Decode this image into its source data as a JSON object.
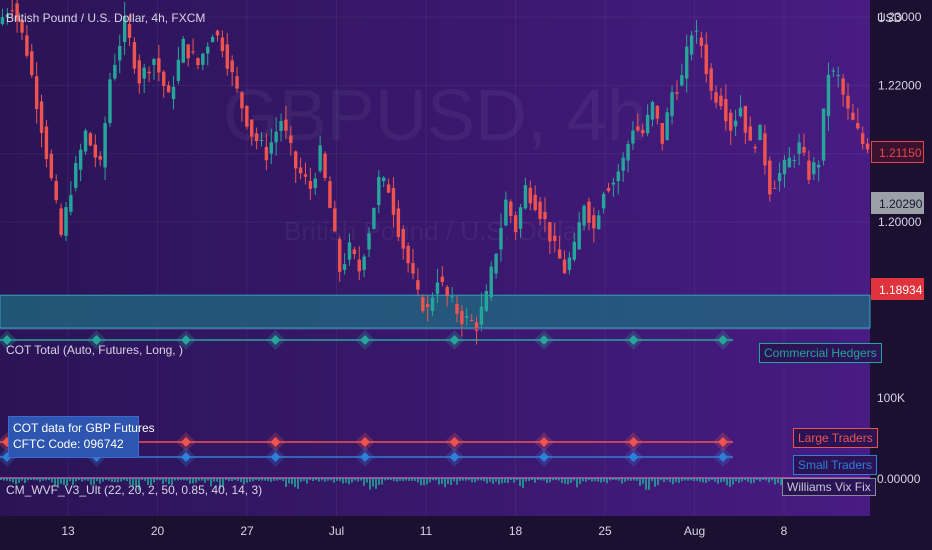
{
  "header": {
    "symbol_title": "British Pound / U.S. Dollar, 4h, FXCM"
  },
  "watermark": {
    "main": "GBPUSD, 4h",
    "sub": "British Pound / U.S. Dollar"
  },
  "price_axis": {
    "currency": "USD",
    "ticks": [
      "1.23000",
      "1.22000",
      "1.21000",
      "1.20000"
    ],
    "tags": [
      {
        "text": "1.21150",
        "color": "#3a1230",
        "border": "#e0474c",
        "fg": "#e0474c"
      },
      {
        "text": "1.20290",
        "color": "#9aa1a8",
        "border": "#9aa1a8",
        "fg": "#1a1a2a"
      },
      {
        "text": "1.18934",
        "color": "#e0343c",
        "border": "#e0343c",
        "fg": "#ffffff"
      }
    ]
  },
  "cot_panel": {
    "title": "COT Total (Auto, Futures, Long, )",
    "axis_tick": "100K",
    "info_line1": "COT data for GBP Futures",
    "info_line2": "CFTC Code: 096742",
    "legend": [
      {
        "name": "Commercial Hedgers",
        "color": "#26a69a"
      },
      {
        "name": "Large Traders",
        "color": "#ef5350"
      },
      {
        "name": "Small Traders",
        "color": "#2f7fd6"
      }
    ]
  },
  "wvf_panel": {
    "title": "CM_WVF_V3_Ult (22, 20, 2, 50, 0.85, 40, 14, 3)",
    "legend": "Williams Vix Fix",
    "axis_tick": "0.00000"
  },
  "time_axis": {
    "labels": [
      "13",
      "20",
      "27",
      "Jul",
      "11",
      "18",
      "25",
      "Aug",
      "8"
    ]
  },
  "colors": {
    "up": "#26a69a",
    "down": "#ef5350",
    "support_zone": "#1f6b80"
  },
  "chart_data": {
    "type": "candlestick",
    "title": "British Pound / U.S. Dollar, 4h, FXCM",
    "ylabel": "USD",
    "ylim": [
      1.1845,
      1.2325
    ],
    "support_zone": [
      1.1845,
      1.1893
    ],
    "last_close": 1.2115,
    "price_path": [
      [
        0,
        1.229
      ],
      [
        3,
        1.232
      ],
      [
        6,
        1.225
      ],
      [
        9,
        1.214
      ],
      [
        12,
        1.202
      ],
      [
        13,
        1.198
      ],
      [
        15,
        1.205
      ],
      [
        18,
        1.213
      ],
      [
        21,
        1.208
      ],
      [
        23,
        1.221
      ],
      [
        26,
        1.229
      ],
      [
        29,
        1.221
      ],
      [
        32,
        1.224
      ],
      [
        35,
        1.218
      ],
      [
        38,
        1.226
      ],
      [
        41,
        1.223
      ],
      [
        44,
        1.228
      ],
      [
        46,
        1.226
      ],
      [
        49,
        1.219
      ],
      [
        52,
        1.213
      ],
      [
        55,
        1.21
      ],
      [
        58,
        1.215
      ],
      [
        61,
        1.208
      ],
      [
        64,
        1.205
      ],
      [
        66,
        1.21
      ],
      [
        68,
        1.202
      ],
      [
        70,
        1.193
      ],
      [
        72,
        1.196
      ],
      [
        74,
        1.193
      ],
      [
        76,
        1.199
      ],
      [
        78,
        1.206
      ],
      [
        80,
        1.205
      ],
      [
        82,
        1.199
      ],
      [
        84,
        1.194
      ],
      [
        86,
        1.189
      ],
      [
        88,
        1.187
      ],
      [
        90,
        1.192
      ],
      [
        92,
        1.189
      ],
      [
        95,
        1.186
      ],
      [
        98,
        1.185
      ],
      [
        100,
        1.189
      ],
      [
        102,
        1.196
      ],
      [
        104,
        1.203
      ],
      [
        106,
        1.199
      ],
      [
        108,
        1.205
      ],
      [
        110,
        1.203
      ],
      [
        112,
        1.2
      ],
      [
        114,
        1.196
      ],
      [
        116,
        1.193
      ],
      [
        118,
        1.196
      ],
      [
        120,
        1.203
      ],
      [
        122,
        1.199
      ],
      [
        124,
        1.205
      ],
      [
        126,
        1.206
      ],
      [
        128,
        1.209
      ],
      [
        130,
        1.214
      ],
      [
        132,
        1.213
      ],
      [
        134,
        1.217
      ],
      [
        136,
        1.212
      ],
      [
        138,
        1.219
      ],
      [
        140,
        1.221
      ],
      [
        142,
        1.228
      ],
      [
        144,
        1.226
      ],
      [
        146,
        1.219
      ],
      [
        148,
        1.218
      ],
      [
        150,
        1.214
      ],
      [
        152,
        1.217
      ],
      [
        154,
        1.211
      ],
      [
        156,
        1.213
      ],
      [
        158,
        1.205
      ],
      [
        160,
        1.207
      ],
      [
        162,
        1.209
      ],
      [
        164,
        1.211
      ],
      [
        166,
        1.207
      ],
      [
        168,
        1.209
      ],
      [
        170,
        1.222
      ],
      [
        172,
        1.221
      ],
      [
        174,
        1.216
      ],
      [
        176,
        1.213
      ],
      [
        177,
        1.2115
      ]
    ],
    "cot_series": [
      {
        "name": "Commercial Hedgers",
        "values": [
          0,
          1,
          2,
          3,
          4,
          5,
          6,
          7,
          8
        ],
        "level": "high"
      },
      {
        "name": "Large Traders",
        "values": [
          0,
          1,
          2,
          3,
          4,
          5,
          6,
          7,
          8
        ],
        "level": "mid"
      },
      {
        "name": "Small Traders",
        "values": [
          0,
          1,
          2,
          3,
          4,
          5,
          6,
          7,
          8
        ],
        "level": "low"
      }
    ],
    "x_ticks": [
      "13",
      "20",
      "27",
      "Jul",
      "11",
      "18",
      "25",
      "Aug",
      "8"
    ]
  }
}
